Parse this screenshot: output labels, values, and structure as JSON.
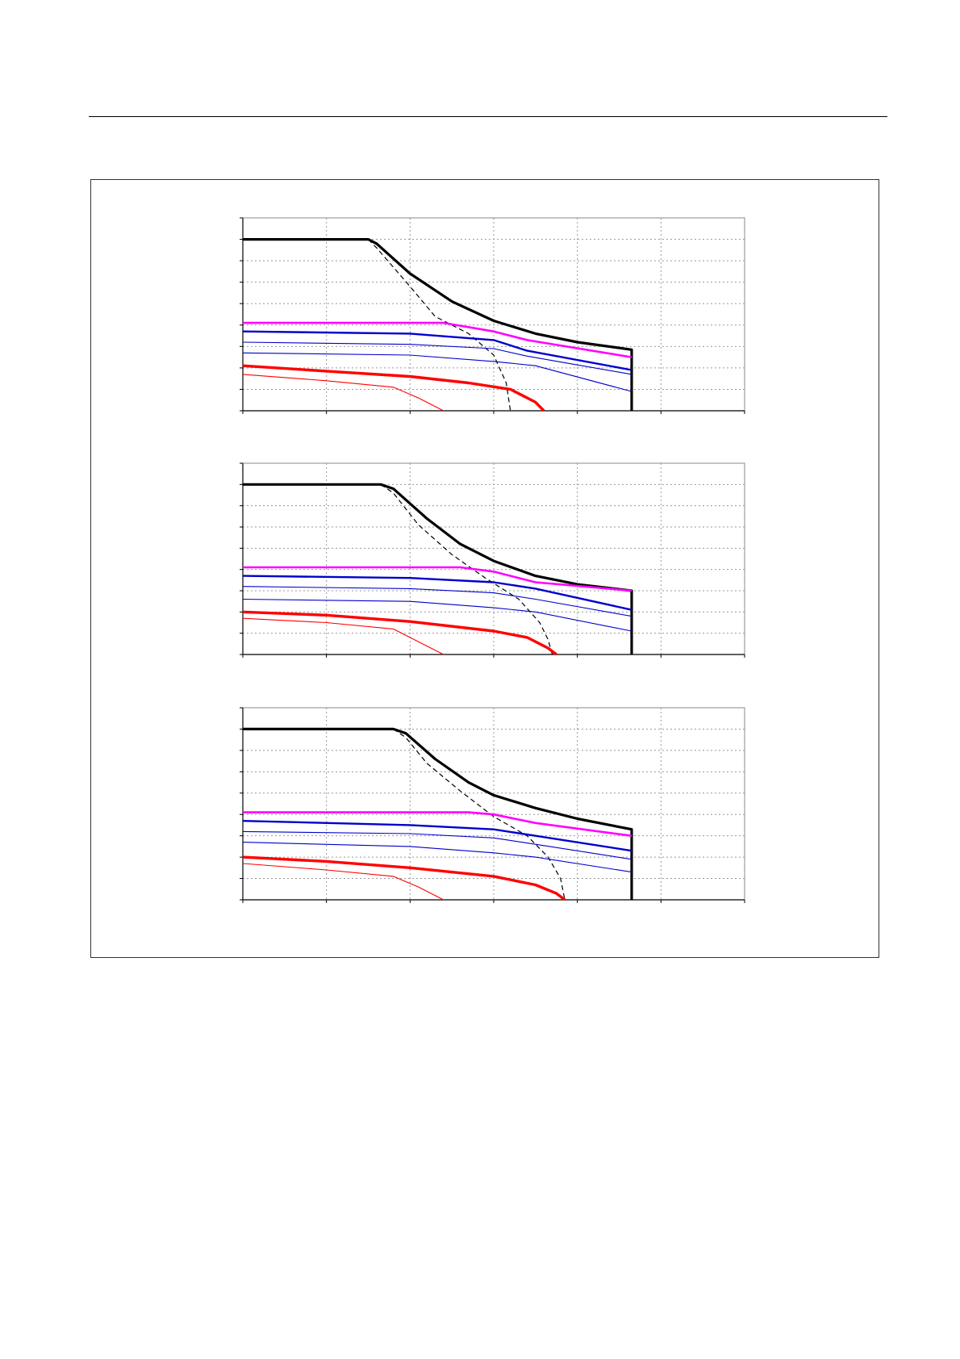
{
  "colors": {
    "black": "#000000",
    "magenta": "#ff00ff",
    "blue": "#0000cc",
    "red": "#ff0000",
    "grid": "#999999"
  },
  "chart_data": [
    {
      "type": "line",
      "xlim": [
        0,
        6
      ],
      "ylim": [
        0,
        9
      ],
      "grid": true,
      "x_ticks": [
        0,
        1,
        2,
        3,
        4,
        5,
        6
      ],
      "y_ticks": [
        0,
        1,
        2,
        3,
        4,
        5,
        6,
        7,
        8,
        9
      ],
      "series": [
        {
          "color": "#000000",
          "width": 3.2,
          "points": [
            [
              0,
              8
            ],
            [
              1.5,
              8
            ],
            [
              1.6,
              7.8
            ],
            [
              2,
              6.4
            ],
            [
              2.5,
              5.1
            ],
            [
              3,
              4.2
            ],
            [
              3.5,
              3.6
            ],
            [
              4,
              3.2
            ],
            [
              4.65,
              2.85
            ],
            [
              4.65,
              0
            ]
          ]
        },
        {
          "color": "#000000",
          "width": 1.2,
          "dash": "6,4",
          "points": [
            [
              1.5,
              8
            ],
            [
              1.6,
              7.6
            ],
            [
              2,
              5.8
            ],
            [
              2.3,
              4.4
            ],
            [
              2.7,
              3.6
            ],
            [
              3,
              2.6
            ],
            [
              3.15,
              1.3
            ],
            [
              3.2,
              0
            ]
          ]
        },
        {
          "color": "#ff00ff",
          "width": 2.6,
          "points": [
            [
              0,
              4.1
            ],
            [
              2.4,
              4.1
            ],
            [
              3,
              3.7
            ],
            [
              3.4,
              3.3
            ],
            [
              4.65,
              2.5
            ]
          ]
        },
        {
          "color": "#0000cc",
          "width": 2.4,
          "points": [
            [
              0,
              3.7
            ],
            [
              2,
              3.6
            ],
            [
              3,
              3.3
            ],
            [
              3.4,
              2.8
            ],
            [
              4.65,
              1.9
            ]
          ]
        },
        {
          "color": "#0000cc",
          "width": 1.1,
          "points": [
            [
              0,
              3.2
            ],
            [
              2,
              3.1
            ],
            [
              3,
              2.9
            ],
            [
              3.4,
              2.55
            ],
            [
              4.65,
              1.7
            ]
          ]
        },
        {
          "color": "#0000cc",
          "width": 1.1,
          "points": [
            [
              0,
              2.7
            ],
            [
              2,
              2.6
            ],
            [
              3,
              2.3
            ],
            [
              3.5,
              2.1
            ],
            [
              4.65,
              0.9
            ]
          ]
        },
        {
          "color": "#ff0000",
          "width": 3.4,
          "points": [
            [
              0,
              2.1
            ],
            [
              1,
              1.85
            ],
            [
              2,
              1.6
            ],
            [
              2.7,
              1.3
            ],
            [
              3.2,
              1.0
            ],
            [
              3.5,
              0.4
            ],
            [
              3.6,
              0
            ]
          ]
        },
        {
          "color": "#ff0000",
          "width": 1.1,
          "points": [
            [
              0,
              1.7
            ],
            [
              1,
              1.4
            ],
            [
              1.8,
              1.1
            ],
            [
              2.1,
              0.6
            ],
            [
              2.4,
              0
            ]
          ]
        }
      ]
    },
    {
      "type": "line",
      "xlim": [
        0,
        6
      ],
      "ylim": [
        0,
        9
      ],
      "grid": true,
      "x_ticks": [
        0,
        1,
        2,
        3,
        4,
        5,
        6
      ],
      "y_ticks": [
        0,
        1,
        2,
        3,
        4,
        5,
        6,
        7,
        8,
        9
      ],
      "series": [
        {
          "color": "#000000",
          "width": 3.2,
          "points": [
            [
              0,
              8
            ],
            [
              1.65,
              8
            ],
            [
              1.8,
              7.8
            ],
            [
              2.2,
              6.4
            ],
            [
              2.6,
              5.2
            ],
            [
              3,
              4.4
            ],
            [
              3.5,
              3.7
            ],
            [
              4,
              3.3
            ],
            [
              4.65,
              3.0
            ],
            [
              4.65,
              0
            ]
          ]
        },
        {
          "color": "#000000",
          "width": 1.2,
          "dash": "6,4",
          "points": [
            [
              1.65,
              8
            ],
            [
              1.8,
              7.6
            ],
            [
              2.1,
              6.1
            ],
            [
              2.5,
              4.7
            ],
            [
              2.9,
              3.6
            ],
            [
              3.3,
              2.6
            ],
            [
              3.55,
              1.5
            ],
            [
              3.65,
              0.7
            ],
            [
              3.7,
              0
            ]
          ]
        },
        {
          "color": "#ff00ff",
          "width": 2.6,
          "points": [
            [
              0,
              4.1
            ],
            [
              2.6,
              4.1
            ],
            [
              3,
              3.9
            ],
            [
              3.5,
              3.4
            ],
            [
              4.65,
              3.0
            ]
          ]
        },
        {
          "color": "#0000cc",
          "width": 2.4,
          "points": [
            [
              0,
              3.7
            ],
            [
              2,
              3.6
            ],
            [
              3,
              3.4
            ],
            [
              3.5,
              3.1
            ],
            [
              4.65,
              2.1
            ]
          ]
        },
        {
          "color": "#0000cc",
          "width": 1.1,
          "points": [
            [
              0,
              3.2
            ],
            [
              2,
              3.1
            ],
            [
              3,
              2.9
            ],
            [
              3.5,
              2.6
            ],
            [
              4.65,
              1.8
            ]
          ]
        },
        {
          "color": "#0000cc",
          "width": 1.1,
          "points": [
            [
              0,
              2.6
            ],
            [
              2,
              2.5
            ],
            [
              3,
              2.2
            ],
            [
              3.5,
              2.0
            ],
            [
              4.65,
              1.1
            ]
          ]
        },
        {
          "color": "#ff0000",
          "width": 3.4,
          "points": [
            [
              0,
              2.0
            ],
            [
              1,
              1.85
            ],
            [
              2,
              1.55
            ],
            [
              3,
              1.1
            ],
            [
              3.4,
              0.8
            ],
            [
              3.65,
              0.3
            ],
            [
              3.75,
              0
            ]
          ]
        },
        {
          "color": "#ff0000",
          "width": 1.1,
          "points": [
            [
              0,
              1.7
            ],
            [
              1,
              1.5
            ],
            [
              1.8,
              1.2
            ],
            [
              2.1,
              0.6
            ],
            [
              2.4,
              0
            ]
          ]
        }
      ]
    },
    {
      "type": "line",
      "xlim": [
        0,
        6
      ],
      "ylim": [
        0,
        9
      ],
      "grid": true,
      "x_ticks": [
        0,
        1,
        2,
        3,
        4,
        5,
        6
      ],
      "y_ticks": [
        0,
        1,
        2,
        3,
        4,
        5,
        6,
        7,
        8,
        9
      ],
      "series": [
        {
          "color": "#000000",
          "width": 3.2,
          "points": [
            [
              0,
              8
            ],
            [
              1.8,
              8
            ],
            [
              1.95,
              7.8
            ],
            [
              2.3,
              6.6
            ],
            [
              2.7,
              5.5
            ],
            [
              3,
              4.9
            ],
            [
              3.5,
              4.3
            ],
            [
              4,
              3.8
            ],
            [
              4.65,
              3.3
            ],
            [
              4.65,
              0
            ]
          ]
        },
        {
          "color": "#000000",
          "width": 1.2,
          "dash": "6,4",
          "points": [
            [
              1.8,
              8
            ],
            [
              1.95,
              7.6
            ],
            [
              2.2,
              6.4
            ],
            [
              2.6,
              5.1
            ],
            [
              3,
              3.9
            ],
            [
              3.4,
              3.0
            ],
            [
              3.65,
              2.0
            ],
            [
              3.8,
              1.0
            ],
            [
              3.85,
              0
            ]
          ]
        },
        {
          "color": "#ff00ff",
          "width": 2.6,
          "points": [
            [
              0,
              4.1
            ],
            [
              2.7,
              4.1
            ],
            [
              3,
              4.0
            ],
            [
              3.5,
              3.6
            ],
            [
              4.65,
              3.0
            ]
          ]
        },
        {
          "color": "#0000cc",
          "width": 2.4,
          "points": [
            [
              0,
              3.7
            ],
            [
              2,
              3.5
            ],
            [
              3,
              3.3
            ],
            [
              3.5,
              3.0
            ],
            [
              4.65,
              2.3
            ]
          ]
        },
        {
          "color": "#0000cc",
          "width": 1.1,
          "points": [
            [
              0,
              3.2
            ],
            [
              2,
              3.1
            ],
            [
              3,
              2.9
            ],
            [
              3.5,
              2.6
            ],
            [
              4.65,
              1.9
            ]
          ]
        },
        {
          "color": "#0000cc",
          "width": 1.1,
          "points": [
            [
              0,
              2.7
            ],
            [
              2,
              2.5
            ],
            [
              3,
              2.2
            ],
            [
              3.5,
              2.0
            ],
            [
              4.65,
              1.3
            ]
          ]
        },
        {
          "color": "#ff0000",
          "width": 3.4,
          "points": [
            [
              0,
              2.0
            ],
            [
              1,
              1.8
            ],
            [
              2,
              1.5
            ],
            [
              3,
              1.1
            ],
            [
              3.5,
              0.7
            ],
            [
              3.75,
              0.3
            ],
            [
              3.85,
              0
            ]
          ]
        },
        {
          "color": "#ff0000",
          "width": 1.1,
          "points": [
            [
              0,
              1.7
            ],
            [
              1,
              1.4
            ],
            [
              1.8,
              1.1
            ],
            [
              2.1,
              0.6
            ],
            [
              2.4,
              0
            ]
          ]
        }
      ]
    }
  ]
}
